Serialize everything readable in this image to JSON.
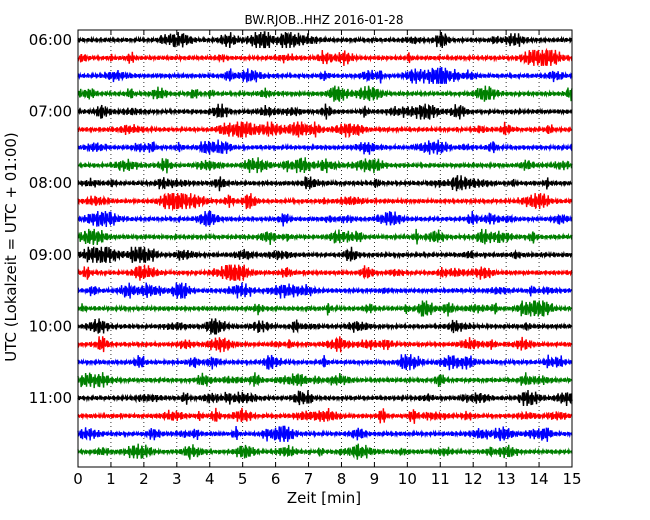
{
  "chart_data": {
    "type": "line",
    "title": "BW.RJOB..HHZ 2016-01-28",
    "xlabel": "Zeit  [min]",
    "ylabel": "UTC (Lokalzeit = UTC + 01:00)",
    "xlim": [
      0,
      15
    ],
    "x_ticks": [
      0,
      1,
      2,
      3,
      4,
      5,
      6,
      7,
      8,
      9,
      10,
      11,
      12,
      13,
      14,
      15
    ],
    "y_tick_labels": [
      "06:00",
      "07:00",
      "08:00",
      "09:00",
      "10:00",
      "11:00"
    ],
    "grid": "vertical dotted",
    "trace_colors": [
      "#000000",
      "#ff0000",
      "#0000ff",
      "#008000"
    ],
    "trace_count": 24,
    "trace_interval_minutes": 15,
    "trace_start": "06:00",
    "trace_end": "11:45"
  }
}
